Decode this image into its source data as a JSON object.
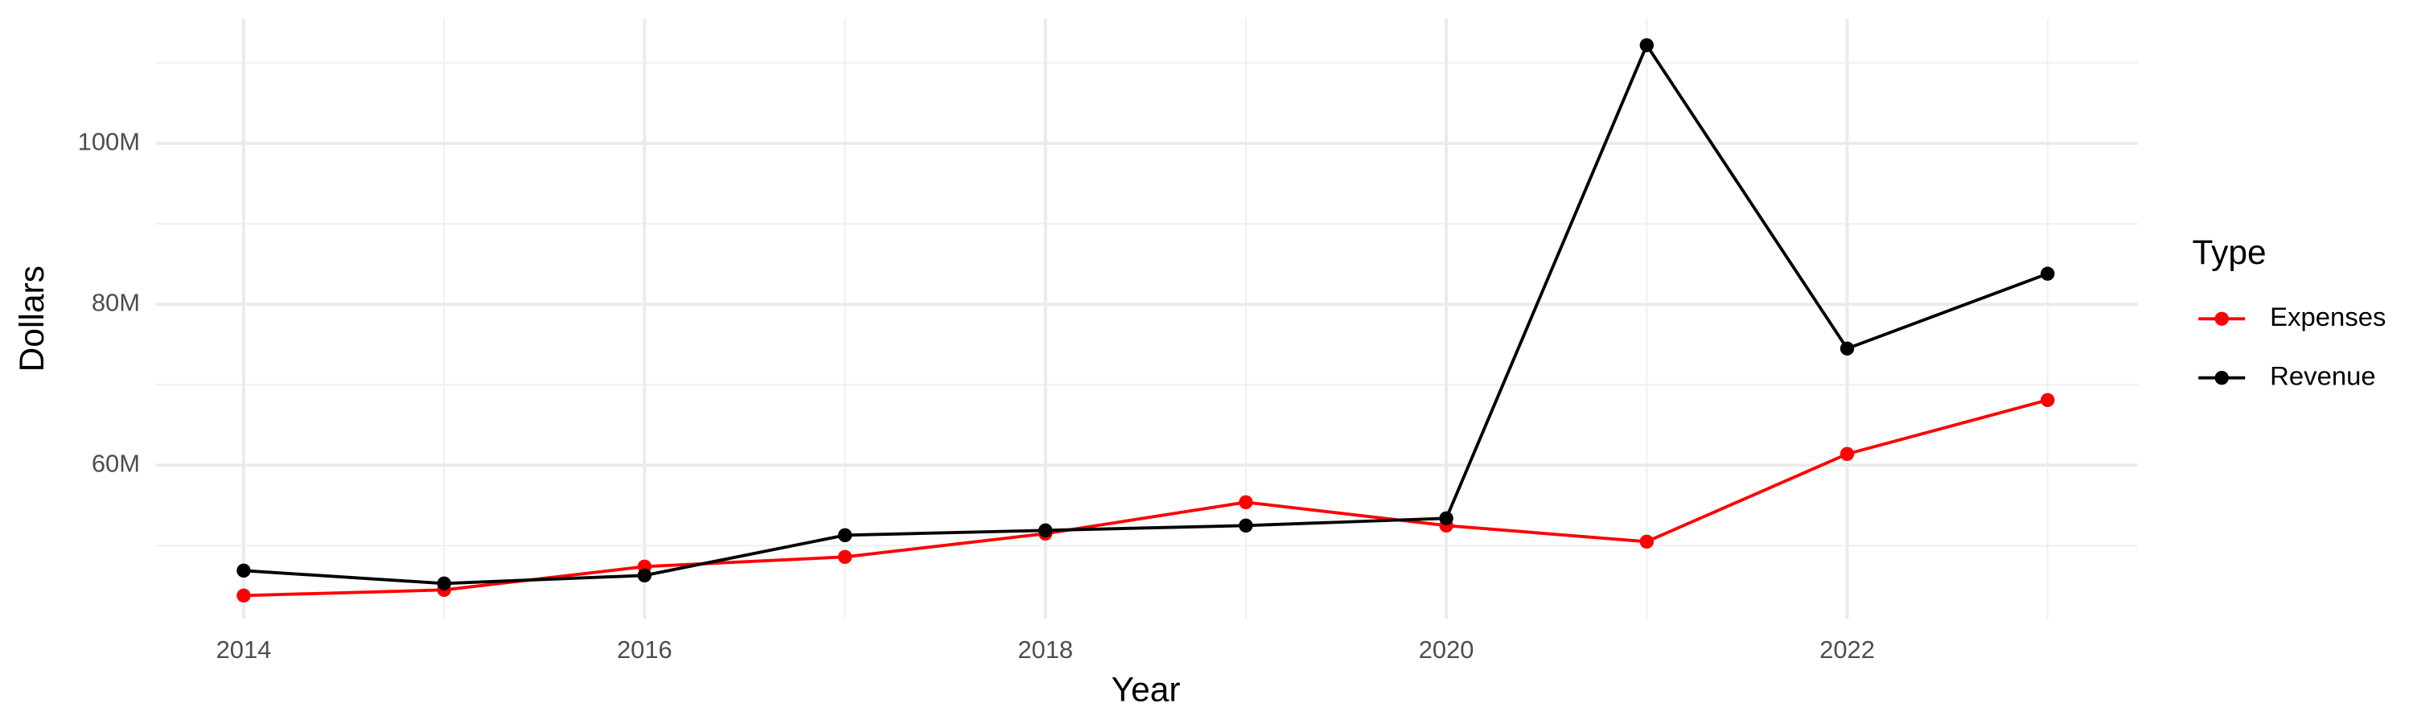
{
  "chart_data": {
    "type": "line",
    "x_label": "Year",
    "y_label": "Dollars",
    "x": [
      2014,
      2015,
      2016,
      2017,
      2018,
      2019,
      2020,
      2021,
      2022,
      2023
    ],
    "series": [
      {
        "name": "Expenses",
        "color": "#ff0000",
        "values": [
          43800000,
          44500000,
          47400000,
          48600000,
          51500000,
          55400000,
          52500000,
          50500000,
          61400000,
          68100000
        ]
      },
      {
        "name": "Revenue",
        "color": "#000000",
        "values": [
          46900000,
          45300000,
          46300000,
          51300000,
          51900000,
          52500000,
          53400000,
          112200000,
          74500000,
          83800000
        ]
      }
    ],
    "xlim": [
      2013.56,
      2023.45
    ],
    "xticks": [
      2014,
      2016,
      2018,
      2020,
      2022
    ],
    "ylim": [
      40900000,
      115500000
    ],
    "yticks": [
      {
        "value": 60000000,
        "label": "60M"
      },
      {
        "value": 80000000,
        "label": "80M"
      },
      {
        "value": 100000000,
        "label": "100M"
      }
    ],
    "grid": true,
    "legend_title": "Type",
    "legend_position": "right"
  }
}
